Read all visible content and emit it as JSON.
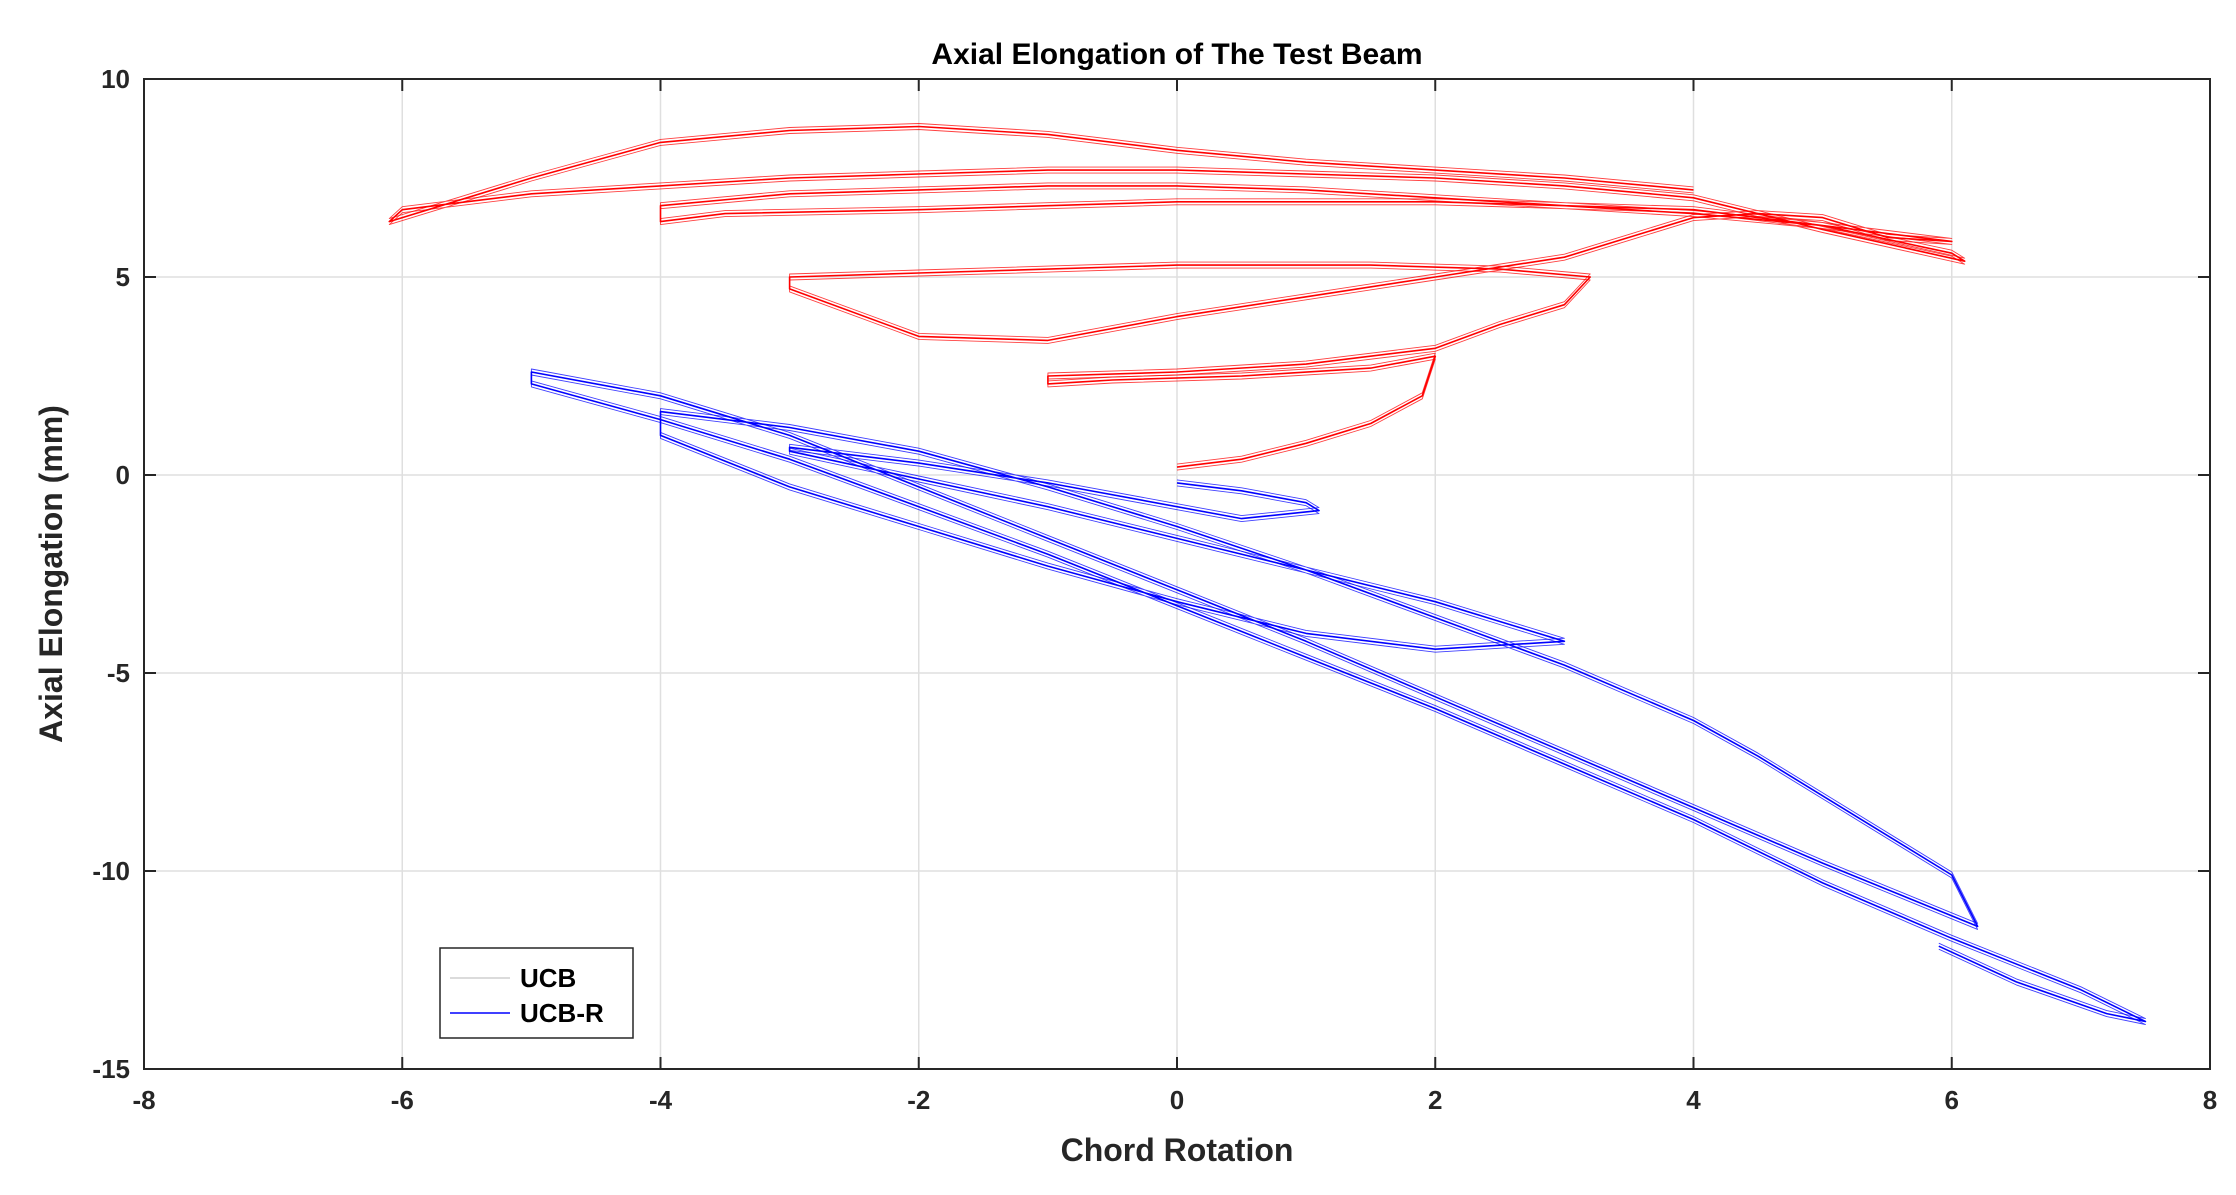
{
  "chart_data": {
    "type": "line",
    "title": "Axial Elongation of The Test Beam",
    "xlabel": "Chord Rotation",
    "ylabel": "Axial Elongation (mm)",
    "xlim": [
      -8,
      8
    ],
    "ylim": [
      -15,
      10
    ],
    "xticks": [
      -8,
      -6,
      -4,
      -2,
      0,
      2,
      4,
      6,
      8
    ],
    "yticks": [
      -15,
      -10,
      -5,
      0,
      5,
      10
    ],
    "xtick_labels": [
      "-8",
      "-6",
      "-4",
      "-2",
      "0",
      "2",
      "4",
      "6",
      "8"
    ],
    "ytick_labels": [
      "-15",
      "-10",
      "-5",
      "0",
      "5",
      "10"
    ],
    "grid": true,
    "legend_position": "bottom-left",
    "series": [
      {
        "name": "UCB",
        "color": "#ff0000",
        "x": [
          0,
          0.5,
          1.0,
          1.5,
          1.9,
          2.0,
          1.5,
          0.5,
          -0.5,
          -1.0,
          -1.0,
          0,
          1.0,
          2.0,
          2.5,
          3.0,
          3.2,
          2.5,
          1.5,
          0,
          -1.0,
          -2.0,
          -3.0,
          -3.0,
          -2.0,
          -1.0,
          0,
          1.0,
          2.0,
          3.0,
          3.5,
          4.0,
          4.5,
          5.0,
          5.5,
          6.0,
          5.0,
          4.0,
          3.0,
          2.0,
          1.0,
          0,
          -1.0,
          -2.0,
          -3.5,
          -4.0,
          -4.0,
          -3.0,
          -2.0,
          -1.0,
          0,
          1.0,
          2.0,
          3.0,
          4.0,
          5.0,
          6.0,
          6.1,
          5.0,
          4.0,
          3.0,
          2.0,
          1.0,
          0,
          -1.0,
          -2.0,
          -3.0,
          -4.0,
          -5.0,
          -6.0,
          -6.1,
          -5.0,
          -4.0,
          -3.0,
          -2.0,
          -1.0,
          0,
          1.0,
          2.0,
          3.0,
          4.0
        ],
        "y": [
          0.2,
          0.4,
          0.8,
          1.3,
          2.0,
          3.0,
          2.7,
          2.5,
          2.4,
          2.3,
          2.5,
          2.6,
          2.8,
          3.2,
          3.8,
          4.3,
          5.0,
          5.2,
          5.3,
          5.3,
          5.2,
          5.1,
          5.0,
          4.7,
          3.5,
          3.4,
          4.0,
          4.5,
          5.0,
          5.5,
          6.0,
          6.5,
          6.6,
          6.5,
          6.0,
          5.9,
          6.3,
          6.7,
          6.8,
          6.9,
          6.9,
          6.9,
          6.8,
          6.7,
          6.6,
          6.4,
          6.8,
          7.1,
          7.2,
          7.3,
          7.3,
          7.2,
          7.0,
          6.8,
          6.6,
          6.3,
          5.6,
          5.4,
          6.2,
          7.0,
          7.3,
          7.5,
          7.6,
          7.7,
          7.7,
          7.6,
          7.5,
          7.3,
          7.1,
          6.7,
          6.4,
          7.5,
          8.4,
          8.7,
          8.8,
          8.6,
          8.2,
          7.9,
          7.7,
          7.5,
          7.2
        ]
      },
      {
        "name": "UCB-R",
        "color": "#0000ff",
        "x": [
          0,
          0.5,
          1.0,
          1.1,
          0.5,
          -1.0,
          -2.0,
          -3.0,
          -3.0,
          -2.0,
          -1.0,
          0,
          1.0,
          2.0,
          2.5,
          3.0,
          2.0,
          1.0,
          0,
          -1.0,
          -2.0,
          -3.0,
          -4.0,
          -4.0,
          -3.0,
          -2.0,
          -1.0,
          0,
          1.0,
          2.0,
          3.0,
          4.0,
          4.5,
          5.0,
          6.0,
          6.2,
          5.0,
          4.0,
          3.0,
          2.0,
          1.0,
          0,
          -1.0,
          -2.0,
          -3.0,
          -4.0,
          -5.0,
          -5.0,
          -4.0,
          -3.0,
          -2.0,
          -1.0,
          0,
          1.0,
          2.0,
          3.0,
          4.0,
          5.0,
          6.0,
          7.0,
          7.5,
          7.2,
          6.5,
          5.9
        ],
        "y": [
          -0.2,
          -0.4,
          -0.7,
          -0.9,
          -1.1,
          -0.2,
          0.3,
          0.7,
          0.6,
          -0.1,
          -0.8,
          -1.6,
          -2.4,
          -3.2,
          -3.7,
          -4.2,
          -4.4,
          -4.0,
          -3.2,
          -2.3,
          -1.3,
          -0.3,
          1.0,
          1.6,
          1.2,
          0.6,
          -0.3,
          -1.3,
          -2.4,
          -3.6,
          -4.8,
          -6.2,
          -7.1,
          -8.1,
          -10.1,
          -11.4,
          -9.8,
          -8.4,
          -7.0,
          -5.6,
          -4.2,
          -2.9,
          -1.6,
          -0.3,
          1.0,
          2.0,
          2.6,
          2.3,
          1.4,
          0.4,
          -0.8,
          -2.0,
          -3.3,
          -4.6,
          -5.9,
          -7.3,
          -8.7,
          -10.3,
          -11.7,
          -13.0,
          -13.8,
          -13.6,
          -12.8,
          -11.9
        ]
      }
    ]
  }
}
